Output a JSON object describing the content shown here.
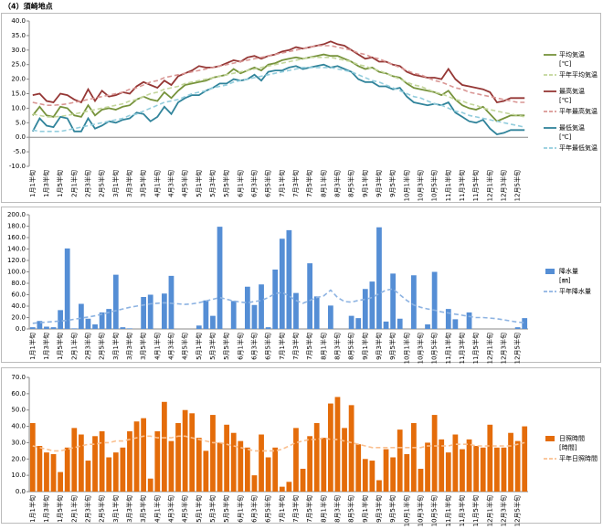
{
  "title": "（4）須崎地点",
  "chart_data": [
    {
      "type": "line",
      "categories": [
        "1月1半旬",
        null,
        "1月3半旬",
        null,
        "1月5半旬",
        null,
        "2月1半旬",
        null,
        "2月3半旬",
        null,
        "2月5半旬",
        null,
        "3月1半旬",
        null,
        "3月3半旬",
        null,
        "3月5半旬",
        null,
        "4月1半旬",
        null,
        "4月3半旬",
        null,
        "4月5半旬",
        null,
        "5月1半旬",
        null,
        "5月3半旬",
        null,
        "5月5半旬",
        null,
        "6月1半旬",
        null,
        "6月3半旬",
        null,
        "6月5半旬",
        null,
        "7月1半旬",
        null,
        "7月3半旬",
        null,
        "7月5半旬",
        null,
        "8月1半旬",
        null,
        "8月3半旬",
        null,
        "8月5半旬",
        null,
        "9月1半旬",
        null,
        "9月3半旬",
        null,
        "9月5半旬",
        null,
        "10月1半旬",
        null,
        "10月3半旬",
        null,
        "10月5半旬",
        null,
        "11月1半旬",
        null,
        "11月3半旬",
        null,
        "11月5半旬",
        null,
        "12月1半旬",
        null,
        "12月3半旬",
        null,
        "12月5半旬",
        null
      ],
      "ylim": [
        -10,
        40
      ],
      "yticks": [
        {
          "value": -10,
          "label": "-10.0"
        },
        {
          "value": -5,
          "label": "-5.0"
        },
        {
          "value": 0,
          "label": "0.0"
        },
        {
          "value": 5,
          "label": "5.0"
        },
        {
          "value": 10,
          "label": "10.0"
        },
        {
          "value": 15,
          "label": "15.0"
        },
        {
          "value": 20,
          "label": "20.0"
        },
        {
          "value": 25,
          "label": "25.0"
        },
        {
          "value": 30,
          "label": "30.0"
        },
        {
          "value": 35,
          "label": "35.0"
        },
        {
          "value": 40,
          "label": "40.0"
        }
      ],
      "series": [
        {
          "name": "平均気温",
          "unit": "[℃]",
          "color": "#77933c",
          "dash": false,
          "values": [
            7.5,
            10.5,
            7.5,
            7.0,
            10.5,
            10.0,
            7.5,
            7.0,
            11.0,
            7.5,
            9.5,
            10.0,
            9.5,
            10.5,
            11.0,
            13.0,
            14.0,
            13.0,
            12.5,
            15.5,
            13.5,
            16.0,
            18.0,
            18.5,
            19.0,
            19.5,
            20.5,
            21.0,
            21.5,
            23.5,
            22.0,
            23.0,
            24.0,
            23.0,
            25.0,
            25.5,
            26.5,
            27.0,
            27.5,
            27.0,
            27.5,
            28.0,
            28.5,
            28.0,
            28.0,
            27.0,
            26.0,
            24.5,
            23.5,
            24.0,
            22.5,
            22.0,
            21.0,
            20.5,
            18.5,
            17.0,
            16.5,
            16.0,
            15.5,
            14.5,
            16.0,
            13.0,
            11.0,
            10.0,
            9.5,
            10.5,
            8.0,
            5.5,
            6.5,
            7.5,
            7.5,
            7.5
          ]
        },
        {
          "name": "平年平均気温",
          "color": "#c3d69b",
          "dash": true,
          "values": [
            8,
            7.5,
            7,
            7,
            7.2,
            7.5,
            8,
            8.5,
            9,
            9.5,
            10,
            10.5,
            11,
            11.5,
            12.5,
            13,
            14,
            15,
            15.5,
            16.5,
            17,
            17.5,
            18.5,
            19,
            19.5,
            20,
            20.5,
            21,
            21.5,
            22,
            22.5,
            23,
            23.5,
            24,
            24.5,
            25,
            25.5,
            26,
            26.5,
            27,
            27.5,
            27.5,
            27.5,
            27.5,
            27,
            26.5,
            26,
            25,
            24.5,
            23.5,
            23,
            22,
            21,
            20,
            19,
            18,
            17.5,
            16.5,
            15.5,
            15,
            14,
            13,
            12.5,
            11.5,
            11,
            10,
            9.5,
            9,
            8.5,
            8,
            7.5,
            7
          ]
        },
        {
          "name": "最高気温",
          "unit": "[℃]",
          "color": "#953735",
          "dash": false,
          "values": [
            14.5,
            15.0,
            12.5,
            12.0,
            15.0,
            14.5,
            13.0,
            12.0,
            16.5,
            12.5,
            16.0,
            14.0,
            14.5,
            15.5,
            15.0,
            17.5,
            19.0,
            18.0,
            17.0,
            19.5,
            18.0,
            21.0,
            22.0,
            23.0,
            24.5,
            24.0,
            24.0,
            24.5,
            25.5,
            26.5,
            26.0,
            27.5,
            28.0,
            27.0,
            28.0,
            28.5,
            29.5,
            30.0,
            31.0,
            30.5,
            31.0,
            31.5,
            32.0,
            33.0,
            32.0,
            31.5,
            30.0,
            28.5,
            27.0,
            27.5,
            26.0,
            26.0,
            25.0,
            24.5,
            22.5,
            21.5,
            21.0,
            20.5,
            20.5,
            20.0,
            23.5,
            20.0,
            18.0,
            17.5,
            17.0,
            16.5,
            15.5,
            12.0,
            12.5,
            13.5,
            13.5,
            13.5
          ]
        },
        {
          "name": "平年最高気温",
          "color": "#d99694",
          "dash": true,
          "values": [
            12,
            11.5,
            11,
            11,
            11.2,
            11.5,
            12,
            12.5,
            13,
            13.5,
            14,
            14.5,
            15,
            15.5,
            16.5,
            17,
            18,
            19,
            19.5,
            20.5,
            21,
            21.5,
            22,
            22.5,
            23,
            23.5,
            24,
            24.5,
            25,
            25.5,
            26,
            26.5,
            27,
            27.5,
            28,
            28.5,
            29,
            29.5,
            30,
            30.5,
            31,
            31.5,
            31.5,
            31.5,
            31,
            30.5,
            30,
            29,
            28.5,
            27.5,
            27,
            26,
            25,
            24,
            23,
            22,
            21.5,
            20.5,
            19.5,
            19,
            18,
            17,
            16.5,
            15.5,
            15,
            14.5,
            14,
            13.5,
            13,
            12.5,
            12,
            12
          ]
        },
        {
          "name": "最低気温",
          "unit": "[℃]",
          "color": "#31849b",
          "dash": false,
          "values": [
            2.0,
            6.5,
            4.0,
            3.5,
            7.0,
            6.5,
            2.0,
            2.0,
            6.5,
            3.0,
            4.0,
            5.5,
            5.0,
            6.0,
            6.5,
            8.5,
            8.0,
            5.5,
            7.0,
            10.5,
            8.0,
            12.0,
            13.5,
            14.5,
            14.5,
            16.0,
            17.0,
            18.5,
            18.5,
            20.0,
            19.5,
            20.0,
            21.5,
            19.5,
            22.5,
            23.0,
            23.0,
            24.0,
            24.5,
            23.5,
            24.0,
            24.5,
            25.0,
            24.0,
            24.5,
            23.5,
            22.5,
            20.0,
            19.0,
            19.0,
            17.5,
            17.5,
            16.5,
            17.0,
            14.0,
            12.0,
            11.5,
            11.0,
            11.5,
            11.0,
            12.0,
            8.5,
            7.0,
            5.5,
            5.0,
            6.0,
            3.0,
            1.0,
            1.5,
            2.5,
            2.5,
            2.5
          ]
        },
        {
          "name": "平年最低気温",
          "color": "#93cddd",
          "dash": true,
          "values": [
            2.5,
            2,
            2,
            2,
            2,
            2.5,
            3,
            3.5,
            4,
            4.5,
            5,
            5.5,
            6,
            6.5,
            7.5,
            8,
            9,
            10,
            11,
            12,
            12.5,
            13,
            14,
            15,
            15.5,
            16,
            17,
            17.5,
            18,
            19,
            19.5,
            20,
            20.5,
            21,
            21.5,
            22,
            22.5,
            23,
            23.5,
            24,
            24,
            24,
            24,
            24,
            23.5,
            23,
            22.5,
            21.5,
            20.5,
            19.5,
            19,
            18,
            17,
            16,
            15,
            14,
            13.5,
            12.5,
            11.5,
            11,
            10,
            9,
            8.5,
            7.5,
            7,
            6.5,
            6,
            5.5,
            5,
            4.5,
            4,
            3.5
          ]
        }
      ]
    },
    {
      "type": "bar",
      "categories": [
        "1月1半旬",
        null,
        "1月3半旬",
        null,
        "1月5半旬",
        null,
        "2月1半旬",
        null,
        "2月3半旬",
        null,
        "2月5半旬",
        null,
        "3月1半旬",
        null,
        "3月3半旬",
        null,
        "3月5半旬",
        null,
        "4月1半旬",
        null,
        "4月3半旬",
        null,
        "4月5半旬",
        null,
        "5月1半旬",
        null,
        "5月3半旬",
        null,
        "5月5半旬",
        null,
        "6月1半旬",
        null,
        "6月3半旬",
        null,
        "6月5半旬",
        null,
        "7月1半旬",
        null,
        "7月3半旬",
        null,
        "7月5半旬",
        null,
        "8月1半旬",
        null,
        "8月3半旬",
        null,
        "8月5半旬",
        null,
        "9月1半旬",
        null,
        "9月3半旬",
        null,
        "9月5半旬",
        null,
        "10月1半旬",
        null,
        "10月3半旬",
        null,
        "10月5半旬",
        null,
        "11月1半旬",
        null,
        "11月3半旬",
        null,
        "11月5半旬",
        null,
        "12月1半旬",
        null,
        "12月3半旬",
        null,
        "12月5半旬",
        null
      ],
      "ylim": [
        0,
        200
      ],
      "yticks": [
        {
          "value": 0,
          "label": "0.0"
        },
        {
          "value": 20,
          "label": "20.0"
        },
        {
          "value": 40,
          "label": "40.0"
        },
        {
          "value": 60,
          "label": "60.0"
        },
        {
          "value": 80,
          "label": "80.0"
        },
        {
          "value": 100,
          "label": "100.0"
        },
        {
          "value": 120,
          "label": "120.0"
        },
        {
          "value": 140,
          "label": "140.0"
        },
        {
          "value": 160,
          "label": "160.0"
        },
        {
          "value": 180,
          "label": "180.0"
        },
        {
          "value": 200,
          "label": "200.0"
        }
      ],
      "series": [
        {
          "name": "降水量",
          "unit": "[㎜]",
          "color": "#558ed5",
          "type": "bar",
          "values": [
            3,
            14,
            4,
            3,
            33,
            141,
            1,
            44,
            18,
            8,
            29,
            35,
            95,
            3,
            1,
            0,
            56,
            60,
            0,
            62,
            93,
            0,
            0,
            0,
            6,
            50,
            23,
            179,
            0,
            49,
            0,
            74,
            42,
            78,
            3,
            104,
            158,
            173,
            63,
            0,
            115,
            57,
            0,
            41,
            0,
            0,
            23,
            19,
            70,
            83,
            178,
            13,
            97,
            18,
            0,
            94,
            0,
            8,
            100,
            0,
            35,
            17,
            0,
            29,
            0,
            0,
            0,
            0,
            0,
            0,
            3,
            19
          ]
        },
        {
          "name": "平年降水量",
          "color": "#8db3e2",
          "type": "line",
          "dash": true,
          "values": [
            10,
            11,
            12,
            13,
            14,
            15,
            17,
            19,
            21,
            23,
            26,
            29,
            32,
            35,
            38,
            40,
            42,
            44,
            45,
            46,
            45,
            44,
            43,
            44,
            46,
            49,
            52,
            55,
            52,
            49,
            47,
            46,
            48,
            50,
            55,
            62,
            64,
            58,
            50,
            45,
            50,
            55,
            58,
            68,
            55,
            48,
            47,
            50,
            52,
            55,
            62,
            68,
            70,
            60,
            50,
            42,
            38,
            35,
            33,
            30,
            28,
            26,
            24,
            22,
            20,
            20,
            19,
            18,
            16,
            14,
            12,
            11
          ]
        }
      ]
    },
    {
      "type": "bar",
      "categories": [
        "1月1半旬",
        null,
        "1月3半旬",
        null,
        "1月5半旬",
        null,
        "2月1半旬",
        null,
        "2月3半旬",
        null,
        "2月5半旬",
        null,
        "3月1半旬",
        null,
        "3月3半旬",
        null,
        "3月5半旬",
        null,
        "4月1半旬",
        null,
        "4月3半旬",
        null,
        "4月5半旬",
        null,
        "5月1半旬",
        null,
        "5月3半旬",
        null,
        "5月5半旬",
        null,
        "6月1半旬",
        null,
        "6月3半旬",
        null,
        "6月5半旬",
        null,
        "7月1半旬",
        null,
        "7月3半旬",
        null,
        "7月5半旬",
        null,
        "8月1半旬",
        null,
        "8月3半旬",
        null,
        "8月5半旬",
        null,
        "9月1半旬",
        null,
        "9月3半旬",
        null,
        "9月5半旬",
        null,
        "10月1半旬",
        null,
        "10月3半旬",
        null,
        "10月5半旬",
        null,
        "11月1半旬",
        null,
        "11月3半旬",
        null,
        "11月5半旬",
        null,
        "12月1半旬",
        null,
        "12月3半旬",
        null,
        "12月5半旬",
        null
      ],
      "ylim": [
        0,
        70
      ],
      "yticks": [
        {
          "value": 0,
          "label": "0.0"
        },
        {
          "value": 10,
          "label": "10.0"
        },
        {
          "value": 20,
          "label": "20.0"
        },
        {
          "value": 30,
          "label": "30.0"
        },
        {
          "value": 40,
          "label": "40.0"
        },
        {
          "value": 50,
          "label": "50.0"
        },
        {
          "value": 60,
          "label": "60.0"
        },
        {
          "value": 70,
          "label": "70.0"
        }
      ],
      "series": [
        {
          "name": "日照時間",
          "unit": "[時間]",
          "color": "#e46c0a",
          "type": "bar",
          "values": [
            42,
            28,
            24,
            23,
            12,
            27,
            39,
            35,
            19,
            34,
            37,
            21,
            24,
            27,
            37,
            43,
            45,
            8,
            37,
            55,
            31,
            42,
            50,
            48,
            33,
            25,
            47,
            30,
            41,
            36,
            31,
            27,
            10,
            35,
            21,
            27,
            3,
            6,
            39,
            14,
            34,
            42,
            33,
            54,
            58,
            39,
            53,
            29,
            20,
            19,
            7,
            26,
            21,
            38,
            23,
            42,
            14,
            30,
            47,
            32,
            24,
            35,
            26,
            32,
            28,
            27,
            41,
            27,
            27,
            36,
            31,
            40
          ]
        },
        {
          "name": "平年日照時間",
          "color": "#fac090",
          "type": "line",
          "dash": true,
          "values": [
            28,
            27,
            26,
            25,
            25,
            26,
            27,
            28,
            29,
            29,
            30,
            30,
            31,
            31,
            32,
            33,
            34,
            34,
            33,
            33,
            33,
            34,
            34,
            33,
            32,
            31,
            30,
            30,
            29,
            28,
            27,
            26,
            25,
            25,
            25,
            25,
            26,
            28,
            30,
            31,
            32,
            32,
            33,
            32,
            32,
            31,
            30,
            29,
            28,
            27,
            27,
            27,
            27,
            27,
            27,
            27,
            27,
            28,
            28,
            28,
            28,
            29,
            29,
            29,
            28,
            28,
            28,
            28,
            28,
            28,
            29,
            30
          ]
        }
      ]
    }
  ]
}
